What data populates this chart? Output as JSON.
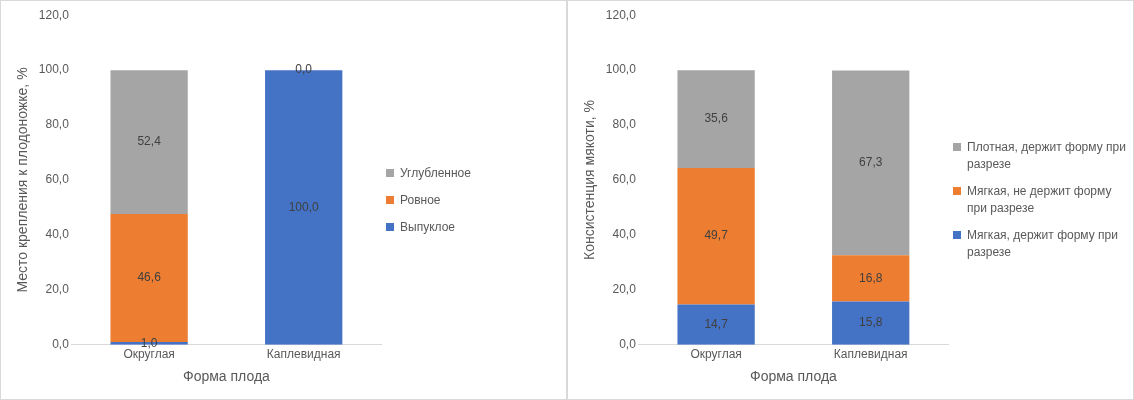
{
  "chart_data": [
    {
      "type": "bar",
      "stacked": true,
      "xlabel": "Форма плода",
      "ylabel": "Место крепления к плодоножке, %",
      "categories": [
        "Округлая",
        "Каплевидная"
      ],
      "ylim": [
        0,
        120
      ],
      "yticks": [
        {
          "value": 0,
          "label": "0,0"
        },
        {
          "value": 20,
          "label": "20,0"
        },
        {
          "value": 40,
          "label": "40,0"
        },
        {
          "value": 60,
          "label": "60,0"
        },
        {
          "value": 80,
          "label": "80,0"
        },
        {
          "value": 100,
          "label": "100,0"
        },
        {
          "value": 120,
          "label": "120,0"
        }
      ],
      "grid": false,
      "legend": "right",
      "series": [
        {
          "name": "Выпуклое",
          "color": "#4472c4",
          "values": [
            1.0,
            100.0
          ],
          "value_labels": [
            "1,0",
            "100,0"
          ]
        },
        {
          "name": "Ровное",
          "color": "#ed7d31",
          "values": [
            46.6,
            0
          ],
          "value_labels": [
            "46,6",
            null
          ]
        },
        {
          "name": "Углубленное",
          "color": "#a5a5a5",
          "values": [
            52.4,
            0
          ],
          "value_labels": [
            "52,4",
            "0,0"
          ]
        }
      ]
    },
    {
      "type": "bar",
      "stacked": true,
      "xlabel": "Форма плода",
      "ylabel": "Консистенция мякоти, %",
      "categories": [
        "Округлая",
        "Каплевидная"
      ],
      "ylim": [
        0,
        120
      ],
      "yticks": [
        {
          "value": 0,
          "label": "0,0"
        },
        {
          "value": 20,
          "label": "20,0"
        },
        {
          "value": 40,
          "label": "40,0"
        },
        {
          "value": 60,
          "label": "60,0"
        },
        {
          "value": 80,
          "label": "80,0"
        },
        {
          "value": 100,
          "label": "100,0"
        },
        {
          "value": 120,
          "label": "120,0"
        }
      ],
      "grid": false,
      "legend": "right",
      "series": [
        {
          "name": "Мягкая, держит форму при разрезе",
          "color": "#4472c4",
          "values": [
            14.7,
            15.8
          ],
          "value_labels": [
            "14,7",
            "15,8"
          ]
        },
        {
          "name": "Мягкая, не держит форму при разрезе",
          "color": "#ed7d31",
          "values": [
            49.7,
            16.8
          ],
          "value_labels": [
            "49,7",
            "16,8"
          ]
        },
        {
          "name": "Плотная, держит форму при разрезе",
          "color": "#a5a5a5",
          "values": [
            35.6,
            67.3
          ],
          "value_labels": [
            "35,6",
            "67,3"
          ]
        }
      ]
    }
  ]
}
